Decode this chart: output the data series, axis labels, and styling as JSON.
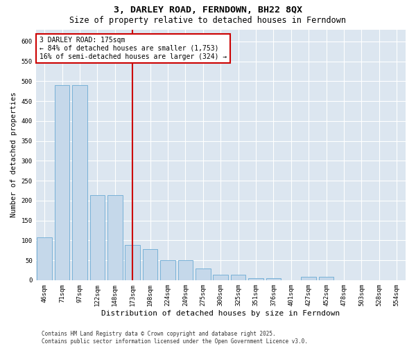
{
  "title": "3, DARLEY ROAD, FERNDOWN, BH22 8QX",
  "subtitle": "Size of property relative to detached houses in Ferndown",
  "xlabel": "Distribution of detached houses by size in Ferndown",
  "ylabel": "Number of detached properties",
  "categories": [
    "46sqm",
    "71sqm",
    "97sqm",
    "122sqm",
    "148sqm",
    "173sqm",
    "198sqm",
    "224sqm",
    "249sqm",
    "275sqm",
    "300sqm",
    "325sqm",
    "351sqm",
    "376sqm",
    "401sqm",
    "427sqm",
    "452sqm",
    "478sqm",
    "503sqm",
    "528sqm",
    "554sqm"
  ],
  "values": [
    108,
    490,
    490,
    213,
    213,
    88,
    78,
    50,
    50,
    30,
    14,
    14,
    5,
    5,
    0,
    8,
    8,
    0,
    0,
    0,
    0
  ],
  "bar_color": "#c5d8ea",
  "bar_edge_color": "#6aaad4",
  "vline_x_index": 5,
  "vline_color": "#cc0000",
  "annotation_text": "3 DARLEY ROAD: 175sqm\n← 84% of detached houses are smaller (1,753)\n16% of semi-detached houses are larger (324) →",
  "annotation_box_color": "#cc0000",
  "ylim": [
    0,
    630
  ],
  "yticks": [
    0,
    50,
    100,
    150,
    200,
    250,
    300,
    350,
    400,
    450,
    500,
    550,
    600
  ],
  "background_color": "#dce6f0",
  "footer": "Contains HM Land Registry data © Crown copyright and database right 2025.\nContains public sector information licensed under the Open Government Licence v3.0.",
  "title_fontsize": 9.5,
  "subtitle_fontsize": 8.5,
  "xlabel_fontsize": 8,
  "ylabel_fontsize": 7.5,
  "tick_fontsize": 6.5,
  "annotation_fontsize": 7,
  "footer_fontsize": 5.5
}
